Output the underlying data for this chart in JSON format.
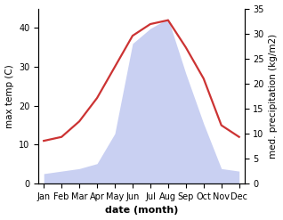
{
  "months": [
    "Jan",
    "Feb",
    "Mar",
    "Apr",
    "May",
    "Jun",
    "Jul",
    "Aug",
    "Sep",
    "Oct",
    "Nov",
    "Dec"
  ],
  "temp": [
    11,
    12,
    16,
    22,
    30,
    38,
    41,
    42,
    35,
    27,
    15,
    12
  ],
  "precip": [
    2,
    2.5,
    3,
    4,
    10,
    28,
    31,
    33,
    22,
    12,
    3,
    2.5
  ],
  "temp_color": "#cc3333",
  "precip_fill_color": "#c0c8f0",
  "precip_fill_alpha": 0.85,
  "ylabel_left": "max temp (C)",
  "ylabel_right": "med. precipitation (kg/m2)",
  "xlabel": "date (month)",
  "ylim_left": [
    0,
    45
  ],
  "ylim_right": [
    0,
    35
  ],
  "yticks_left": [
    0,
    10,
    20,
    30,
    40
  ],
  "yticks_right": [
    0,
    5,
    10,
    15,
    20,
    25,
    30,
    35
  ],
  "linewidth": 1.6,
  "ylabel_fontsize": 7.5,
  "xlabel_fontsize": 8,
  "tick_fontsize": 7,
  "bg_color": "#ffffff"
}
